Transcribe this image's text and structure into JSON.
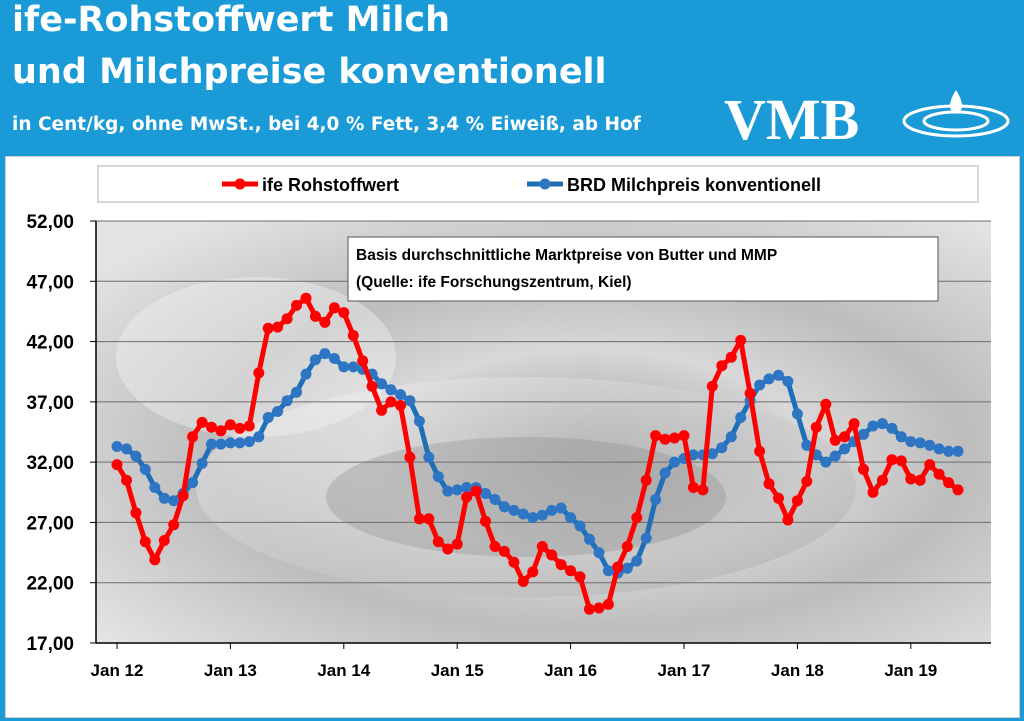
{
  "header": {
    "title_line1": "ife-Rohstoffwert Milch",
    "title_line2": "und Milchpreise konventionell",
    "subtitle": "in Cent/kg, ohne MwSt., bei 4,0 % Fett, 3,4 % Eiweiß, ab Hof",
    "logo_text": "VMB"
  },
  "colors": {
    "header_bg": "#1a9ad6",
    "ife_line": "#ff0000",
    "brd_line": "#1f6fb8",
    "brd_marker": "#2e75c4"
  },
  "chart_data": {
    "type": "line",
    "title": "",
    "xlabel": "",
    "ylabel": "",
    "ylim": [
      17,
      52
    ],
    "y_ticks": [
      "17,00",
      "22,00",
      "27,00",
      "32,00",
      "37,00",
      "42,00",
      "47,00",
      "52,00"
    ],
    "x_ticks": [
      "Jan 12",
      "Jan 13",
      "Jan 14",
      "Jan 15",
      "Jan 16",
      "Jan 17",
      "Jan 18",
      "Jan 19"
    ],
    "x_unit": "months since Jan 2012",
    "grid": true,
    "legend_position": "top",
    "annotation": [
      "Basis durchschnittliche  Marktpreise von Butter und MMP",
      "(Quelle: ife Forschungszentrum, Kiel)"
    ],
    "series": [
      {
        "name": "ife Rohstoffwert",
        "color": "#ff0000",
        "start_month": 0,
        "values": [
          31.8,
          30.5,
          27.8,
          25.4,
          23.9,
          25.5,
          26.8,
          29.2,
          34.1,
          35.3,
          34.9,
          34.6,
          35.1,
          34.8,
          35.0,
          39.4,
          43.1,
          43.2,
          43.9,
          45.0,
          45.6,
          44.1,
          43.6,
          44.8,
          44.4,
          42.5,
          40.4,
          38.3,
          36.3,
          37.0,
          36.7,
          32.4,
          27.3,
          27.3,
          25.4,
          24.8,
          25.2,
          29.1,
          29.6,
          27.1,
          25.0,
          24.6,
          23.7,
          22.1,
          22.9,
          25.0,
          24.3,
          23.5,
          23.0,
          22.5,
          19.8,
          19.9,
          20.2,
          23.3,
          25.0,
          27.4,
          30.5,
          34.2,
          33.9,
          34.0,
          34.2,
          29.9,
          29.7,
          38.3,
          40.0,
          40.7,
          42.1,
          37.7,
          32.9,
          30.2,
          29.0,
          27.2,
          28.8,
          30.4,
          34.9,
          36.8,
          33.8,
          34.1,
          35.2,
          31.4,
          29.5,
          30.5,
          32.2,
          32.1,
          30.6,
          30.5,
          31.8,
          31.0,
          30.3,
          29.7
        ]
      },
      {
        "name": "BRD Milchpreis konventionell",
        "color": "#2e75c4",
        "start_month": 0,
        "values": [
          33.3,
          33.1,
          32.5,
          31.4,
          29.9,
          29.0,
          28.8,
          29.4,
          30.3,
          31.9,
          33.5,
          33.5,
          33.6,
          33.6,
          33.7,
          34.1,
          35.7,
          36.2,
          37.1,
          37.8,
          39.3,
          40.5,
          41.0,
          40.6,
          39.9,
          39.9,
          39.7,
          39.3,
          38.5,
          38.0,
          37.6,
          37.1,
          35.4,
          32.4,
          30.8,
          29.6,
          29.7,
          29.9,
          29.9,
          29.4,
          28.9,
          28.3,
          28.0,
          27.7,
          27.4,
          27.6,
          28.0,
          28.2,
          27.4,
          26.7,
          25.6,
          24.5,
          23.0,
          22.8,
          23.2,
          23.8,
          25.7,
          28.9,
          31.1,
          32.0,
          32.3,
          32.6,
          32.6,
          32.7,
          33.2,
          34.1,
          35.7,
          37.1,
          38.4,
          38.9,
          39.2,
          38.7,
          36.0,
          33.4,
          32.6,
          32.0,
          32.5,
          33.1,
          33.7,
          34.3,
          35.0,
          35.2,
          34.8,
          34.1,
          33.7,
          33.6,
          33.4,
          33.1,
          32.9,
          32.9
        ]
      }
    ]
  }
}
